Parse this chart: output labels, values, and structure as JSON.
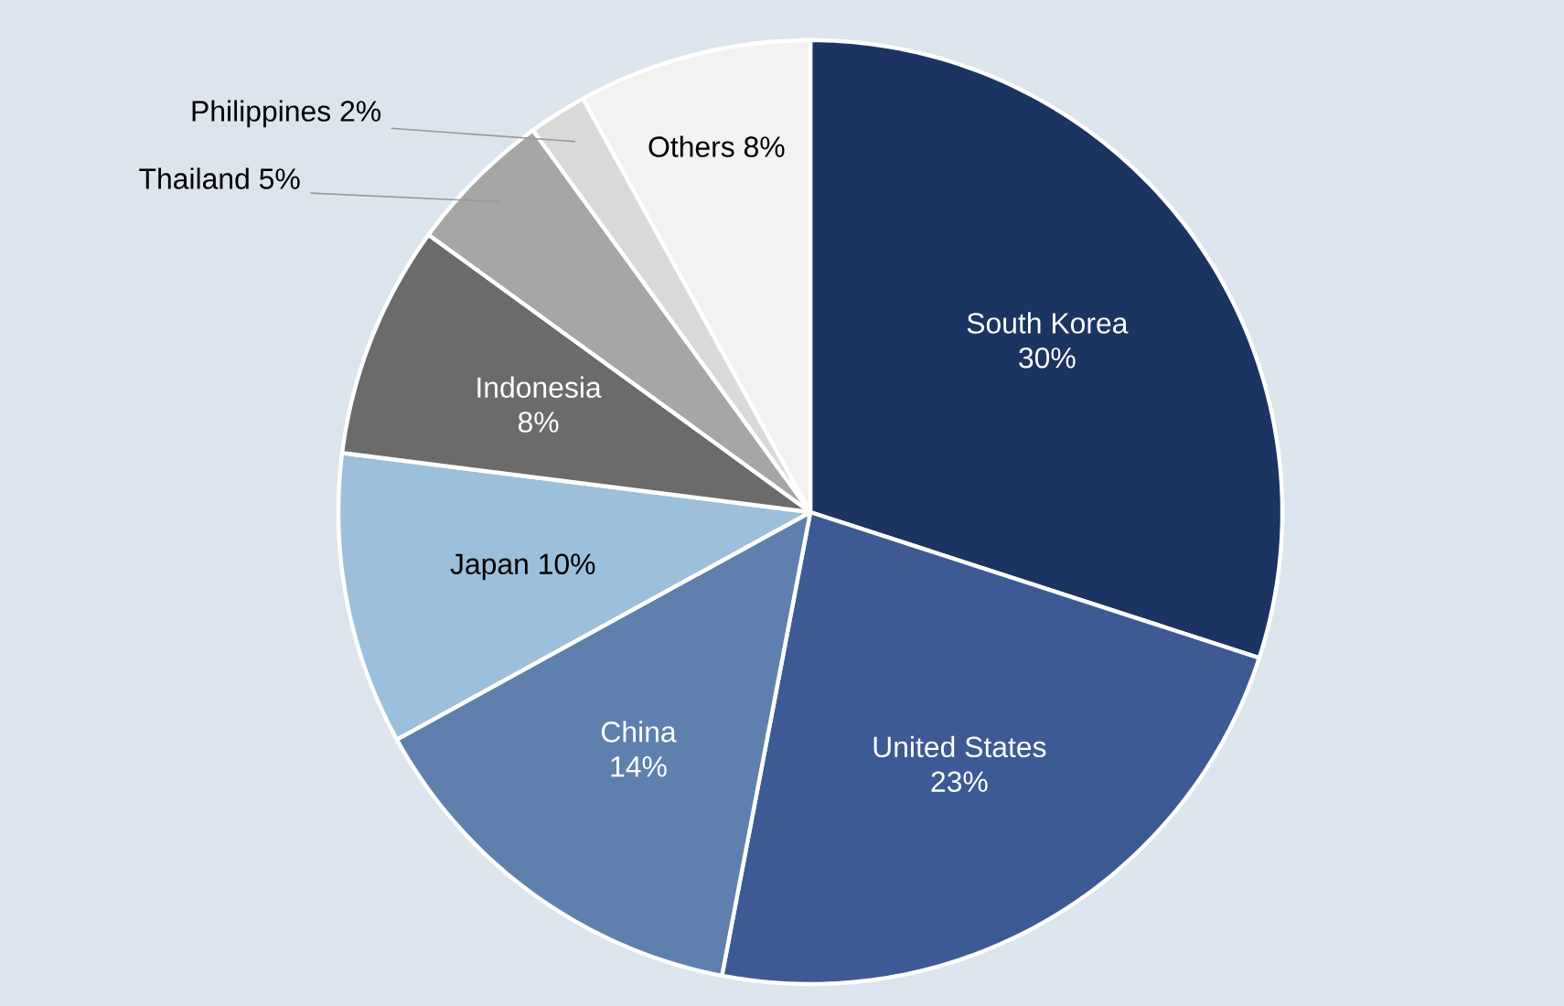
{
  "chart_data": {
    "type": "pie",
    "categories": [
      "South Korea",
      "United States",
      "China",
      "Japan",
      "Indonesia",
      "Thailand",
      "Philippines",
      "Others"
    ],
    "values": [
      30,
      23,
      14,
      10,
      8,
      5,
      2,
      8
    ],
    "value_labels": [
      "30%",
      "23%",
      "14%",
      "10%",
      "8%",
      "5%",
      "2%",
      "8%"
    ],
    "colors": [
      "#1c3461",
      "#3e5a94",
      "#5f80ad",
      "#9cc0db",
      "#6b6b6b",
      "#a6a6a6",
      "#d9d9d9",
      "#f2f2f2"
    ],
    "data_labels": true
  }
}
